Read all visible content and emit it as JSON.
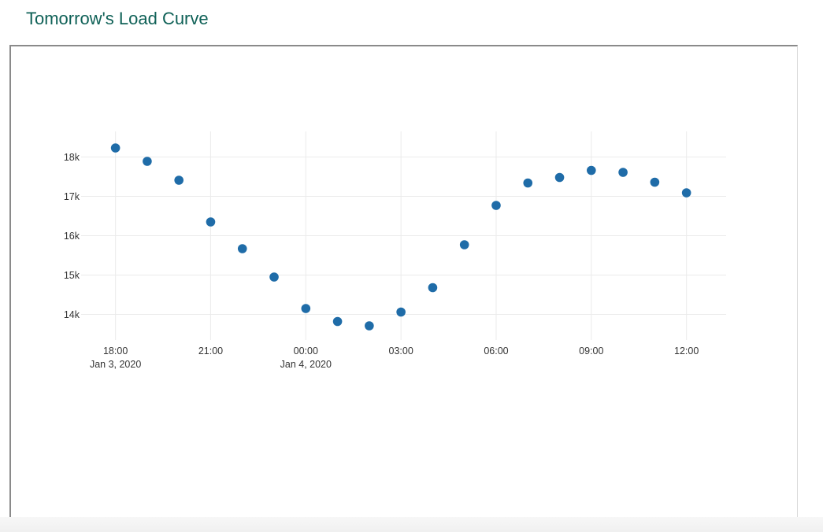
{
  "page": {
    "title": "Tomorrow's Load Curve"
  },
  "colors": {
    "title": "#0f6157",
    "marker": "#1f6ca8",
    "grid": "#ebebeb"
  },
  "chart_data": {
    "type": "scatter",
    "title": "",
    "xlabel": "",
    "ylabel": "",
    "grid": true,
    "legend": "none",
    "x_ticks": [
      {
        "label": "18:00",
        "sublabel": "Jan 3, 2020",
        "x": "2020-01-03T18:00"
      },
      {
        "label": "21:00",
        "sublabel": "",
        "x": "2020-01-03T21:00"
      },
      {
        "label": "00:00",
        "sublabel": "Jan 4, 2020",
        "x": "2020-01-04T00:00"
      },
      {
        "label": "03:00",
        "sublabel": "",
        "x": "2020-01-04T03:00"
      },
      {
        "label": "06:00",
        "sublabel": "",
        "x": "2020-01-04T06:00"
      },
      {
        "label": "09:00",
        "sublabel": "",
        "x": "2020-01-04T09:00"
      },
      {
        "label": "12:00",
        "sublabel": "",
        "x": "2020-01-04T12:00"
      }
    ],
    "y_ticks": [
      {
        "label": "14k",
        "value": 14000
      },
      {
        "label": "15k",
        "value": 15000
      },
      {
        "label": "16k",
        "value": 16000
      },
      {
        "label": "17k",
        "value": 17000
      },
      {
        "label": "18k",
        "value": 18000
      }
    ],
    "xlim": [
      "2020-01-03T16:55",
      "2020-01-04T13:15"
    ],
    "ylim": [
      13350,
      18650
    ],
    "series": [
      {
        "x": [
          "2020-01-03T18:00",
          "2020-01-03T19:00",
          "2020-01-03T20:00",
          "2020-01-03T21:00",
          "2020-01-03T22:00",
          "2020-01-03T23:00",
          "2020-01-04T00:00",
          "2020-01-04T01:00",
          "2020-01-04T02:00",
          "2020-01-04T03:00",
          "2020-01-04T04:00",
          "2020-01-04T05:00",
          "2020-01-04T06:00",
          "2020-01-04T07:00",
          "2020-01-04T08:00",
          "2020-01-04T09:00",
          "2020-01-04T10:00",
          "2020-01-04T11:00",
          "2020-01-04T12:00"
        ],
        "y": [
          18230,
          17890,
          17410,
          16350,
          15670,
          14950,
          14150,
          13820,
          13710,
          14060,
          14680,
          15770,
          16770,
          17340,
          17480,
          17660,
          17610,
          17360,
          17090
        ]
      }
    ]
  }
}
